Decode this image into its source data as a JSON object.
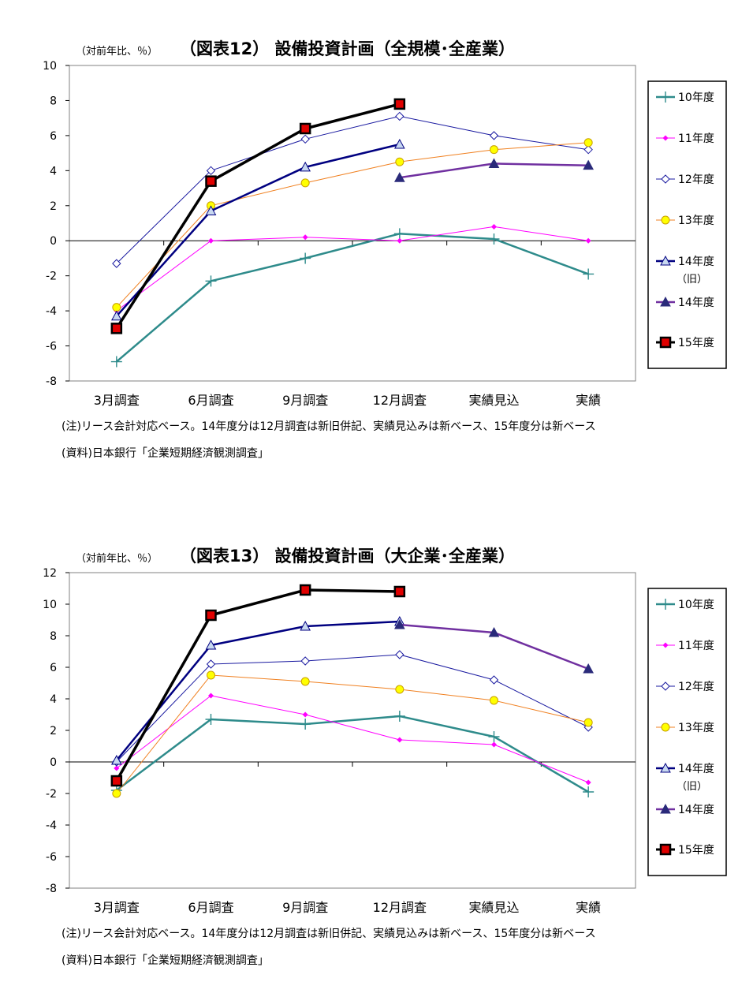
{
  "chart_data": [
    {
      "type": "line",
      "title": "（図表12） 設備投資計画（全規模･全産業）",
      "unit_label": "（対前年比、％）",
      "categories": [
        "3月調査",
        "6月調査",
        "9月調査",
        "12月調査",
        "実績見込",
        "実績"
      ],
      "ylim": [
        -8,
        10
      ],
      "yticks": [
        -8,
        -6,
        -4,
        -2,
        0,
        2,
        4,
        6,
        8,
        10
      ],
      "grid": false,
      "legend_position": "right",
      "series": [
        {
          "name": "10年度",
          "color": "#2e8b8b",
          "marker": "plus",
          "width": 2.5,
          "values": [
            -6.9,
            -2.3,
            -1.0,
            0.4,
            0.1,
            -1.9
          ]
        },
        {
          "name": "11年度",
          "color": "#ff00ff",
          "marker": "diamond-filled",
          "width": 1,
          "values": [
            -4.0,
            0.0,
            0.2,
            0.0,
            0.8,
            0.0
          ]
        },
        {
          "name": "12年度",
          "color": "#1a1aa0",
          "marker": "diamond-open",
          "width": 1,
          "values": [
            -1.3,
            4.0,
            5.8,
            7.1,
            6.0,
            5.2
          ]
        },
        {
          "name": "13年度",
          "color": "#f08020",
          "marker": "circle-yellow",
          "width": 1,
          "values": [
            -3.8,
            2.0,
            3.3,
            4.5,
            5.2,
            5.6
          ]
        },
        {
          "name": "14年度",
          "name_sub": "（旧）",
          "color": "#000080",
          "marker": "triangle-open",
          "width": 2.5,
          "values": [
            -4.3,
            1.7,
            4.2,
            5.5,
            null,
            null
          ]
        },
        {
          "name": "14年度",
          "color": "#7030a0",
          "marker": "triangle-filled",
          "width": 2.5,
          "values": [
            null,
            null,
            null,
            3.6,
            4.4,
            4.3
          ]
        },
        {
          "name": "15年度",
          "color": "#000000",
          "marker": "square-red",
          "width": 3.5,
          "values": [
            -5.0,
            3.4,
            6.4,
            7.8,
            null,
            null
          ]
        }
      ],
      "note": "(注)リース会計対応ベース。14年度分は12月調査は新旧併記、実績見込みは新ベース、15年度分は新ベース",
      "source": "(資料)日本銀行「企業短期経済観測調査」"
    },
    {
      "type": "line",
      "title": "（図表13） 設備投資計画（大企業･全産業）",
      "unit_label": "（対前年比、％）",
      "categories": [
        "3月調査",
        "6月調査",
        "9月調査",
        "12月調査",
        "実績見込",
        "実績"
      ],
      "ylim": [
        -8,
        12
      ],
      "yticks": [
        -8,
        -6,
        -4,
        -2,
        0,
        2,
        4,
        6,
        8,
        10,
        12
      ],
      "grid": false,
      "legend_position": "right",
      "series": [
        {
          "name": "10年度",
          "color": "#2e8b8b",
          "marker": "plus",
          "width": 2.5,
          "values": [
            -1.8,
            2.7,
            2.4,
            2.9,
            1.6,
            -1.9
          ]
        },
        {
          "name": "11年度",
          "color": "#ff00ff",
          "marker": "diamond-filled",
          "width": 1,
          "values": [
            -0.4,
            4.2,
            3.0,
            1.4,
            1.1,
            -1.3
          ]
        },
        {
          "name": "12年度",
          "color": "#1a1aa0",
          "marker": "diamond-open",
          "width": 1,
          "values": [
            0.0,
            6.2,
            6.4,
            6.8,
            5.2,
            2.2
          ]
        },
        {
          "name": "13年度",
          "color": "#f08020",
          "marker": "circle-yellow",
          "width": 1,
          "values": [
            -2.0,
            5.5,
            5.1,
            4.6,
            3.9,
            2.5
          ]
        },
        {
          "name": "14年度",
          "name_sub": "（旧）",
          "color": "#000080",
          "marker": "triangle-open",
          "width": 2.5,
          "values": [
            0.1,
            7.4,
            8.6,
            8.9,
            null,
            null
          ]
        },
        {
          "name": "14年度",
          "color": "#7030a0",
          "marker": "triangle-filled",
          "width": 2.5,
          "values": [
            null,
            null,
            null,
            8.7,
            8.2,
            5.9
          ]
        },
        {
          "name": "15年度",
          "color": "#000000",
          "marker": "square-red",
          "width": 3.5,
          "values": [
            -1.2,
            9.3,
            10.9,
            10.8,
            null,
            null
          ]
        }
      ],
      "note": "(注)リース会計対応ベース。14年度分は12月調査は新旧併記、実績見込みは新ベース、15年度分は新ベース",
      "source": "(資料)日本銀行「企業短期経済観測調査」"
    }
  ]
}
